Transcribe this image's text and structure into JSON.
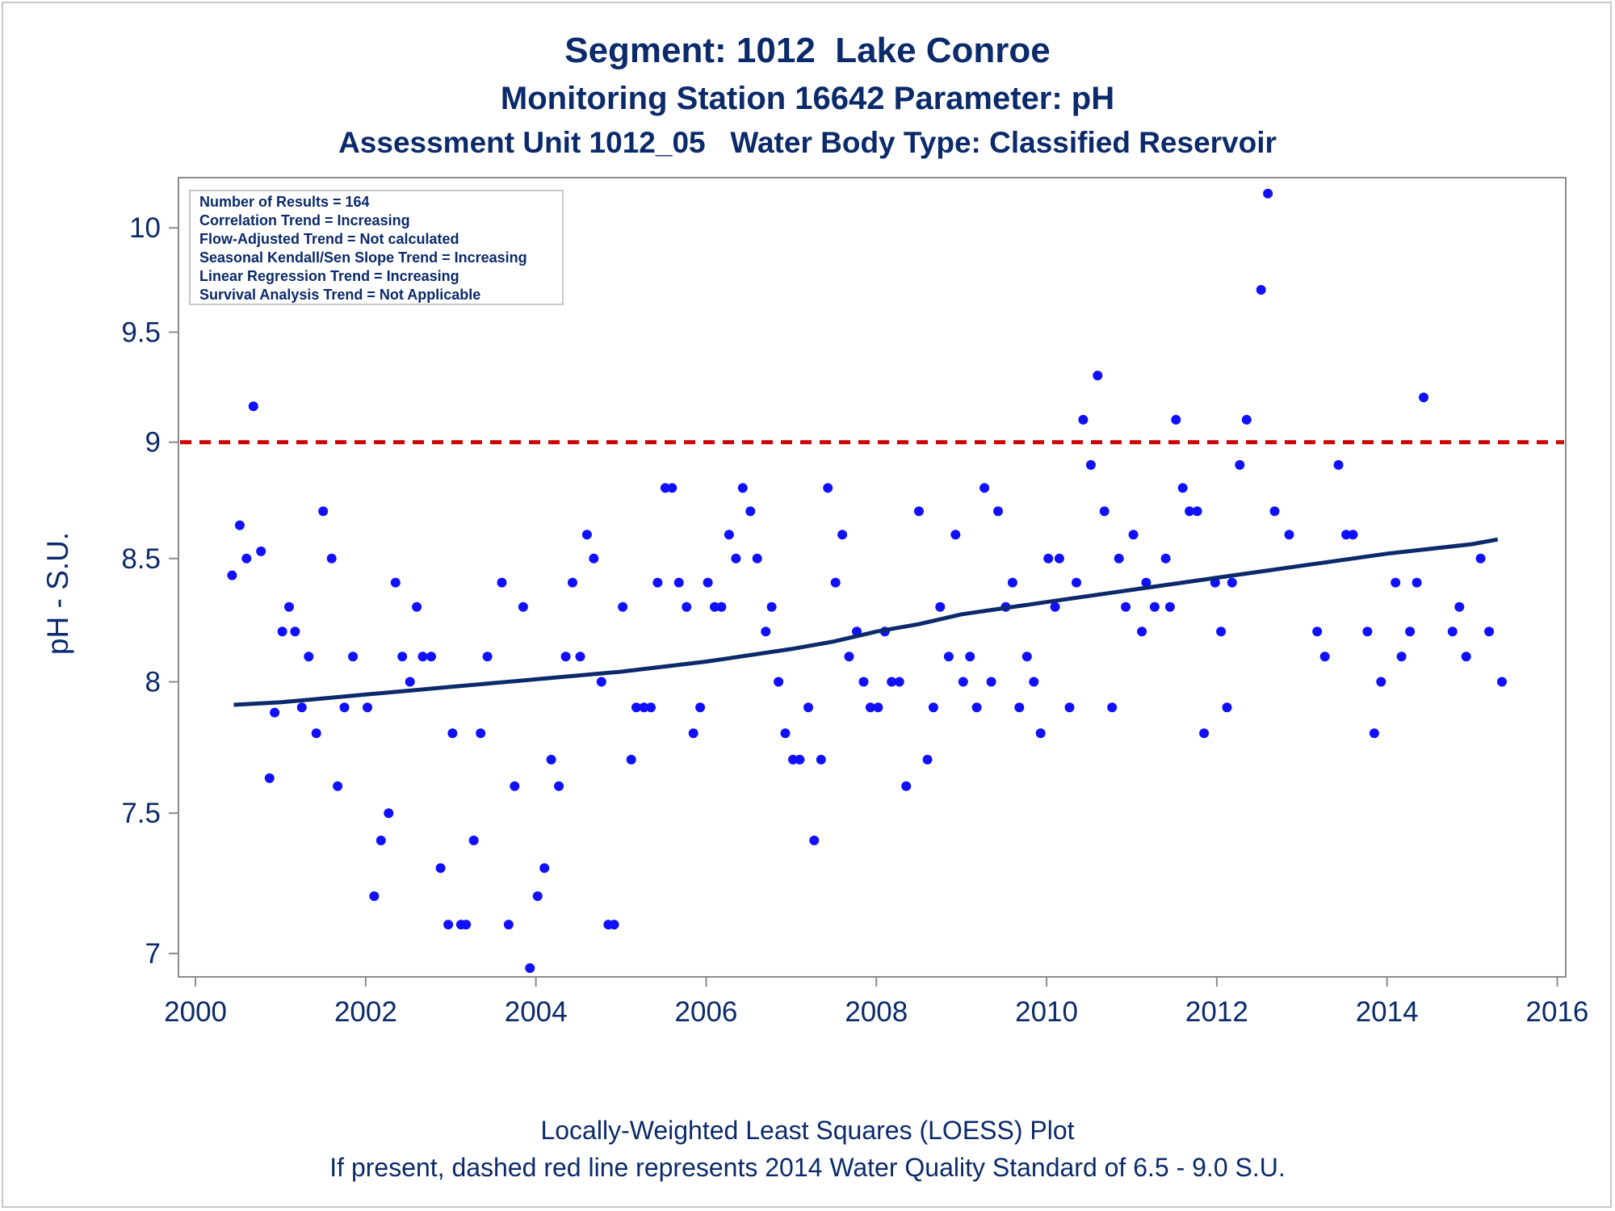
{
  "titles": {
    "line1": "Segment: 1012  Lake Conroe",
    "line2": "Monitoring Station 16642 Parameter: pH",
    "line3": "Assessment Unit 1012_05   Water Body Type: Classified Reservoir"
  },
  "footnotes": {
    "line1": "Locally-Weighted Least Squares (LOESS) Plot",
    "line2": "If present, dashed red line represents 2014 Water Quality Standard of 6.5 - 9.0 S.U."
  },
  "info_box": [
    "Number of Results = 164",
    "Correlation Trend = Increasing",
    "Flow-Adjusted Trend = Not calculated",
    "Seasonal Kendall/Sen Slope Trend = Increasing",
    "Linear Regression Trend = Increasing",
    "Survival Analysis Trend = Not Applicable"
  ],
  "colors": {
    "points": "#1010ff",
    "loess": "#0b2a6b",
    "standard_line": "#cc0000",
    "text": "#0b2a6b",
    "axis": "#8c8c8c"
  },
  "chart_data": {
    "type": "scatter",
    "xlabel": "",
    "ylabel": "pH - S.U.",
    "xlim": [
      1999.8,
      2016.1
    ],
    "ylim": [
      6.92,
      10.25
    ],
    "log_y": true,
    "x_ticks": [
      2000,
      2002,
      2004,
      2006,
      2008,
      2010,
      2012,
      2014,
      2016
    ],
    "y_ticks": [
      7,
      7.5,
      8,
      8.5,
      9,
      9.5,
      10
    ],
    "y_tick_labels": [
      "7",
      "7.5",
      "8",
      "8.5",
      "9",
      "9.5",
      "10"
    ],
    "grid": false,
    "reference_line": {
      "y": 9.0,
      "style": "dashed"
    },
    "points": [
      [
        2000.43,
        8.43
      ],
      [
        2000.52,
        8.64
      ],
      [
        2000.6,
        8.5
      ],
      [
        2000.68,
        9.16
      ],
      [
        2000.77,
        8.53
      ],
      [
        2000.87,
        7.63
      ],
      [
        2000.93,
        7.88
      ],
      [
        2001.02,
        8.2
      ],
      [
        2001.1,
        8.3
      ],
      [
        2001.17,
        8.2
      ],
      [
        2001.25,
        7.9
      ],
      [
        2001.33,
        8.1
      ],
      [
        2001.42,
        7.8
      ],
      [
        2001.5,
        8.7
      ],
      [
        2001.6,
        8.5
      ],
      [
        2001.67,
        7.6
      ],
      [
        2001.75,
        7.9
      ],
      [
        2001.85,
        8.1
      ],
      [
        2002.02,
        7.9
      ],
      [
        2002.1,
        7.2
      ],
      [
        2002.18,
        7.4
      ],
      [
        2002.27,
        7.5
      ],
      [
        2002.35,
        8.4
      ],
      [
        2002.43,
        8.1
      ],
      [
        2002.52,
        8.0
      ],
      [
        2002.6,
        8.3
      ],
      [
        2002.67,
        8.1
      ],
      [
        2002.77,
        8.1
      ],
      [
        2002.88,
        7.3
      ],
      [
        2002.97,
        7.1
      ],
      [
        2003.02,
        7.8
      ],
      [
        2003.12,
        7.1
      ],
      [
        2003.18,
        7.1
      ],
      [
        2003.27,
        7.4
      ],
      [
        2003.35,
        7.8
      ],
      [
        2003.43,
        8.1
      ],
      [
        2003.6,
        8.4
      ],
      [
        2003.68,
        7.1
      ],
      [
        2003.75,
        7.6
      ],
      [
        2003.85,
        8.3
      ],
      [
        2003.93,
        6.95
      ],
      [
        2004.02,
        7.2
      ],
      [
        2004.1,
        7.3
      ],
      [
        2004.18,
        7.7
      ],
      [
        2004.27,
        7.6
      ],
      [
        2004.35,
        8.1
      ],
      [
        2004.43,
        8.4
      ],
      [
        2004.52,
        8.1
      ],
      [
        2004.6,
        8.6
      ],
      [
        2004.68,
        8.5
      ],
      [
        2004.77,
        8.0
      ],
      [
        2004.85,
        7.1
      ],
      [
        2004.92,
        7.1
      ],
      [
        2005.02,
        8.3
      ],
      [
        2005.12,
        7.7
      ],
      [
        2005.18,
        7.9
      ],
      [
        2005.27,
        7.9
      ],
      [
        2005.35,
        7.9
      ],
      [
        2005.43,
        8.4
      ],
      [
        2005.52,
        8.8
      ],
      [
        2005.6,
        8.8
      ],
      [
        2005.68,
        8.4
      ],
      [
        2005.77,
        8.3
      ],
      [
        2005.85,
        7.8
      ],
      [
        2005.93,
        7.9
      ],
      [
        2006.02,
        8.4
      ],
      [
        2006.1,
        8.3
      ],
      [
        2006.18,
        8.3
      ],
      [
        2006.27,
        8.6
      ],
      [
        2006.35,
        8.5
      ],
      [
        2006.43,
        8.8
      ],
      [
        2006.52,
        8.7
      ],
      [
        2006.6,
        8.5
      ],
      [
        2006.7,
        8.2
      ],
      [
        2006.77,
        8.3
      ],
      [
        2006.85,
        8.0
      ],
      [
        2006.93,
        7.8
      ],
      [
        2007.02,
        7.7
      ],
      [
        2007.1,
        7.7
      ],
      [
        2007.2,
        7.9
      ],
      [
        2007.27,
        7.4
      ],
      [
        2007.35,
        7.7
      ],
      [
        2007.43,
        8.8
      ],
      [
        2007.52,
        8.4
      ],
      [
        2007.6,
        8.6
      ],
      [
        2007.68,
        8.1
      ],
      [
        2007.77,
        8.2
      ],
      [
        2007.85,
        8.0
      ],
      [
        2007.93,
        7.9
      ],
      [
        2008.02,
        7.9
      ],
      [
        2008.1,
        8.2
      ],
      [
        2008.18,
        8.0
      ],
      [
        2008.27,
        8.0
      ],
      [
        2008.35,
        7.6
      ],
      [
        2008.5,
        8.7
      ],
      [
        2008.6,
        7.7
      ],
      [
        2008.67,
        7.9
      ],
      [
        2008.75,
        8.3
      ],
      [
        2008.85,
        8.1
      ],
      [
        2008.93,
        8.6
      ],
      [
        2009.02,
        8.0
      ],
      [
        2009.1,
        8.1
      ],
      [
        2009.18,
        7.9
      ],
      [
        2009.27,
        8.8
      ],
      [
        2009.35,
        8.0
      ],
      [
        2009.43,
        8.7
      ],
      [
        2009.52,
        8.3
      ],
      [
        2009.6,
        8.4
      ],
      [
        2009.68,
        7.9
      ],
      [
        2009.77,
        8.1
      ],
      [
        2009.85,
        8.0
      ],
      [
        2009.93,
        7.8
      ],
      [
        2010.02,
        8.5
      ],
      [
        2010.1,
        8.3
      ],
      [
        2010.15,
        8.5
      ],
      [
        2010.27,
        7.9
      ],
      [
        2010.35,
        8.4
      ],
      [
        2010.43,
        9.1
      ],
      [
        2010.52,
        8.9
      ],
      [
        2010.6,
        9.3
      ],
      [
        2010.68,
        8.7
      ],
      [
        2010.77,
        7.9
      ],
      [
        2010.85,
        8.5
      ],
      [
        2010.93,
        8.3
      ],
      [
        2011.02,
        8.6
      ],
      [
        2011.12,
        8.2
      ],
      [
        2011.17,
        8.4
      ],
      [
        2011.27,
        8.3
      ],
      [
        2011.4,
        8.5
      ],
      [
        2011.45,
        8.3
      ],
      [
        2011.52,
        9.1
      ],
      [
        2011.6,
        8.8
      ],
      [
        2011.68,
        8.7
      ],
      [
        2011.77,
        8.7
      ],
      [
        2011.85,
        7.8
      ],
      [
        2011.98,
        8.4
      ],
      [
        2012.05,
        8.2
      ],
      [
        2012.12,
        7.9
      ],
      [
        2012.18,
        8.4
      ],
      [
        2012.27,
        8.9
      ],
      [
        2012.35,
        9.1
      ],
      [
        2012.52,
        9.7
      ],
      [
        2012.6,
        10.17
      ],
      [
        2012.68,
        8.7
      ],
      [
        2012.85,
        8.6
      ],
      [
        2013.18,
        8.2
      ],
      [
        2013.27,
        8.1
      ],
      [
        2013.43,
        8.9
      ],
      [
        2013.52,
        8.6
      ],
      [
        2013.6,
        8.6
      ],
      [
        2013.77,
        8.2
      ],
      [
        2013.85,
        7.8
      ],
      [
        2013.93,
        8.0
      ],
      [
        2014.1,
        8.4
      ],
      [
        2014.17,
        8.1
      ],
      [
        2014.27,
        8.2
      ],
      [
        2014.35,
        8.4
      ],
      [
        2014.43,
        9.2
      ],
      [
        2014.77,
        8.2
      ],
      [
        2014.85,
        8.3
      ],
      [
        2014.93,
        8.1
      ],
      [
        2015.1,
        8.5
      ],
      [
        2015.2,
        8.2
      ],
      [
        2015.35,
        8.0
      ]
    ],
    "loess": [
      [
        2000.45,
        7.91
      ],
      [
        2001.0,
        7.92
      ],
      [
        2002.0,
        7.95
      ],
      [
        2003.0,
        7.98
      ],
      [
        2004.0,
        8.01
      ],
      [
        2005.0,
        8.04
      ],
      [
        2006.0,
        8.08
      ],
      [
        2007.0,
        8.13
      ],
      [
        2007.5,
        8.16
      ],
      [
        2008.0,
        8.2
      ],
      [
        2008.5,
        8.23
      ],
      [
        2009.0,
        8.27
      ],
      [
        2010.0,
        8.32
      ],
      [
        2011.0,
        8.37
      ],
      [
        2012.0,
        8.42
      ],
      [
        2013.0,
        8.47
      ],
      [
        2014.0,
        8.52
      ],
      [
        2015.0,
        8.56
      ],
      [
        2015.3,
        8.58
      ]
    ]
  }
}
